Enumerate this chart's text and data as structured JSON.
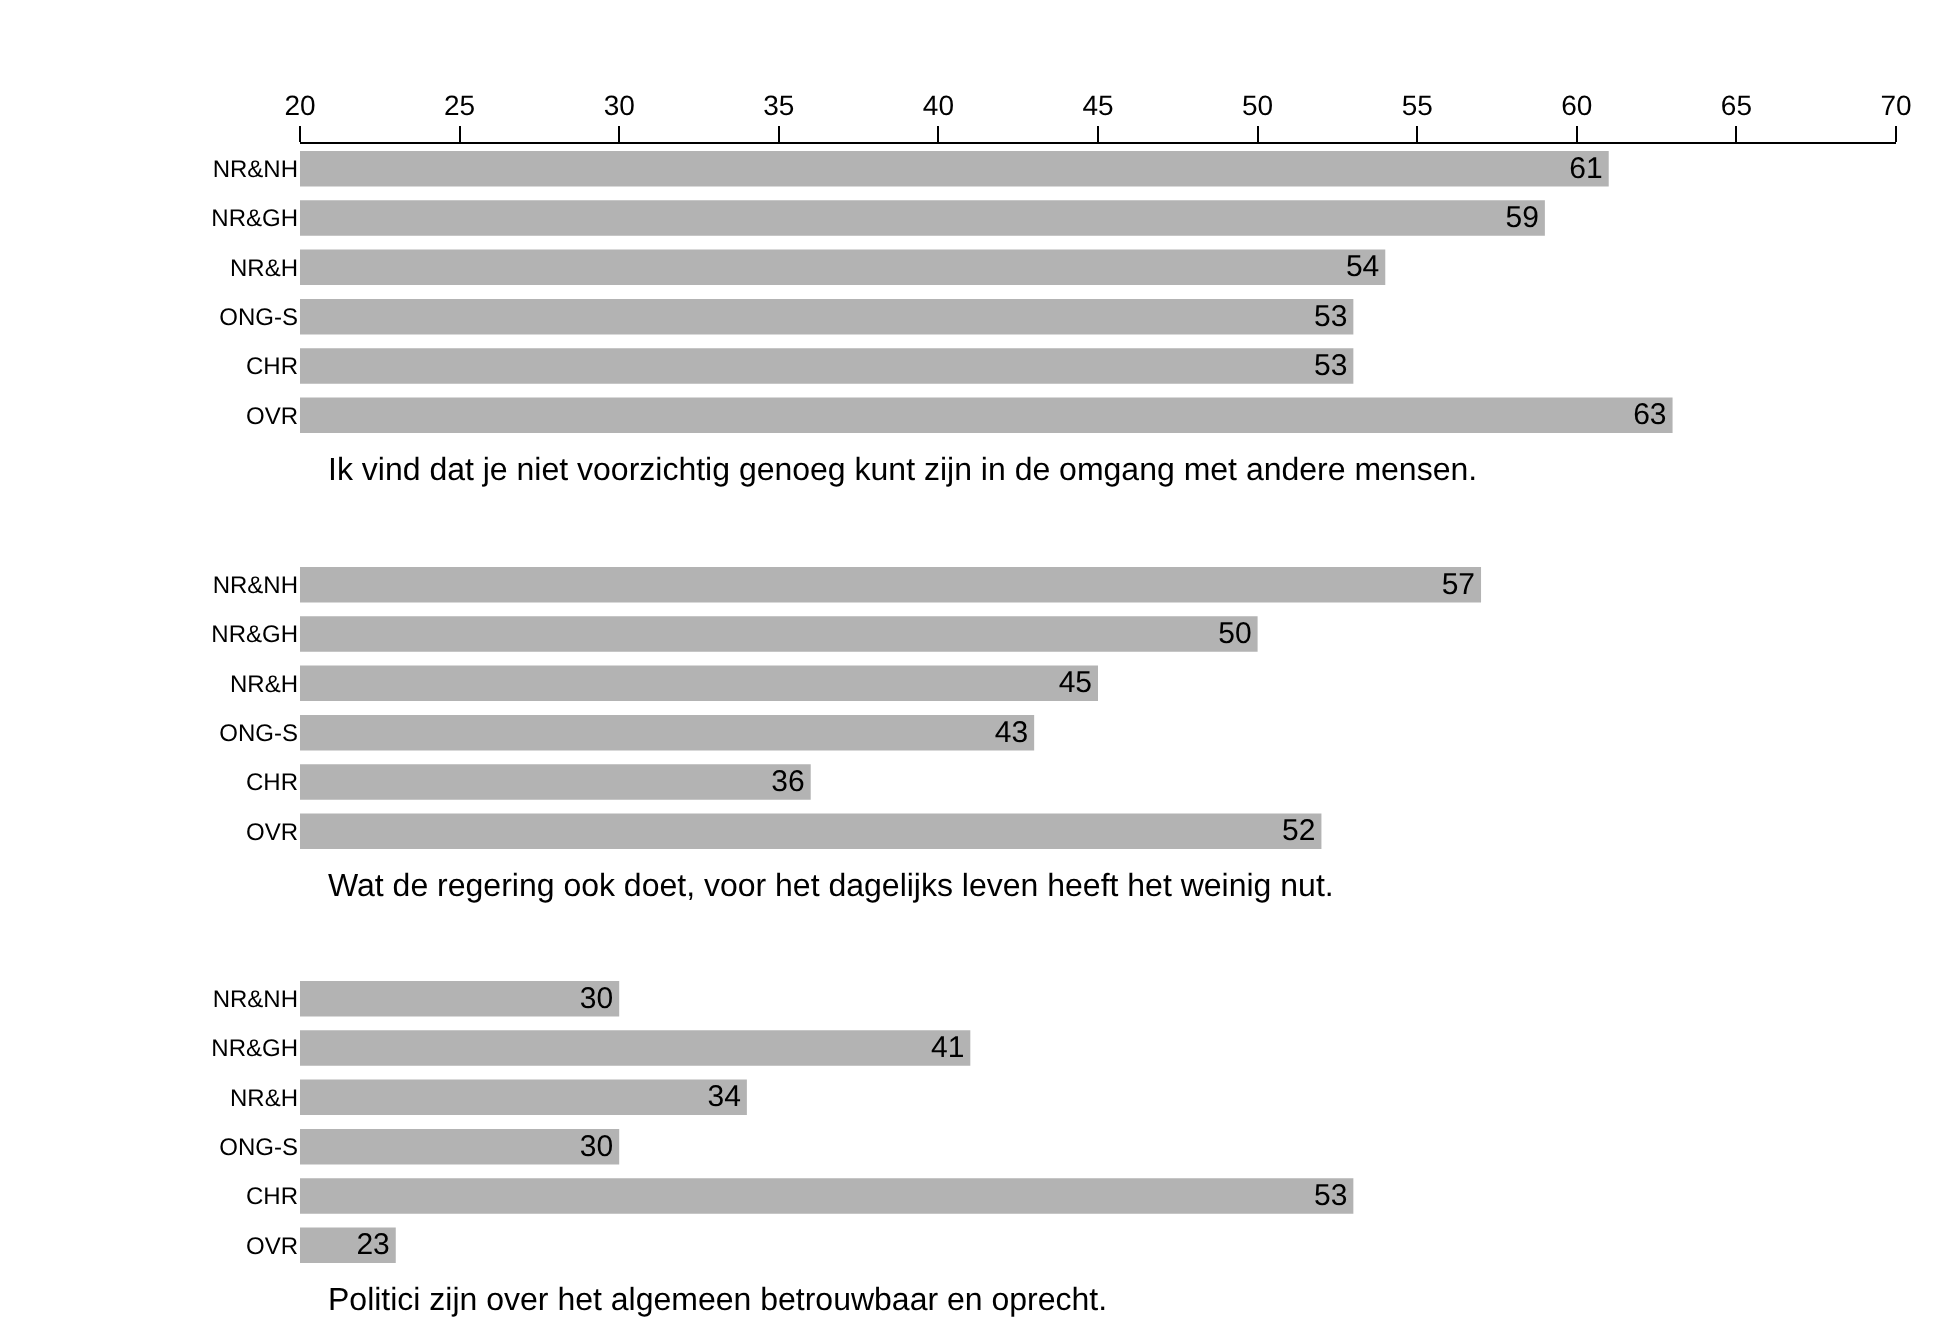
{
  "chart_data": [
    {
      "type": "bar",
      "orientation": "horizontal",
      "categories": [
        "NR&NH",
        "NR&GH",
        "NR&H",
        "ONG-S",
        "CHR",
        "OVR"
      ],
      "values": [
        61,
        59,
        54,
        53,
        53,
        63
      ],
      "color": "#b3b3b3",
      "data_labels": true,
      "xlim": [
        20,
        70
      ],
      "xticks": [
        20,
        25,
        30,
        35,
        40,
        45,
        50,
        55,
        60,
        65,
        70
      ],
      "annotations": [
        "Ik vind dat je niet voorzichtig genoeg kunt zijn in de omgang met andere mensen."
      ]
    },
    {
      "type": "bar",
      "orientation": "horizontal",
      "categories": [
        "NR&NH",
        "NR&GH",
        "NR&H",
        "ONG-S",
        "CHR",
        "OVR"
      ],
      "values": [
        57,
        50,
        45,
        43,
        36,
        52
      ],
      "color": "#b3b3b3",
      "data_labels": true,
      "xlim": [
        20,
        70
      ],
      "xticks": [
        20,
        25,
        30,
        35,
        40,
        45,
        50,
        55,
        60,
        65,
        70
      ],
      "tick_labels": "y",
      "annotations": [
        "Wat de regering ook doet, voor het dagelijks leven heeft het weinig nut."
      ]
    },
    {
      "type": "bar",
      "orientation": "horizontal",
      "categories": [
        "NR&NH",
        "NR&GH",
        "NR&H",
        "ONG-S",
        "CHR",
        "OVR"
      ],
      "values": [
        30,
        41,
        34,
        30,
        53,
        23
      ],
      "color": "#b3b3b3",
      "data_labels": true,
      "xlim": [
        20,
        70
      ],
      "xticks": [
        20,
        25,
        30,
        35,
        40,
        45,
        50,
        55,
        60,
        65,
        70
      ],
      "tick_labels": "y",
      "annotations": [
        "Politici zijn over het algemeen betrouwbaar en oprecht."
      ]
    }
  ]
}
